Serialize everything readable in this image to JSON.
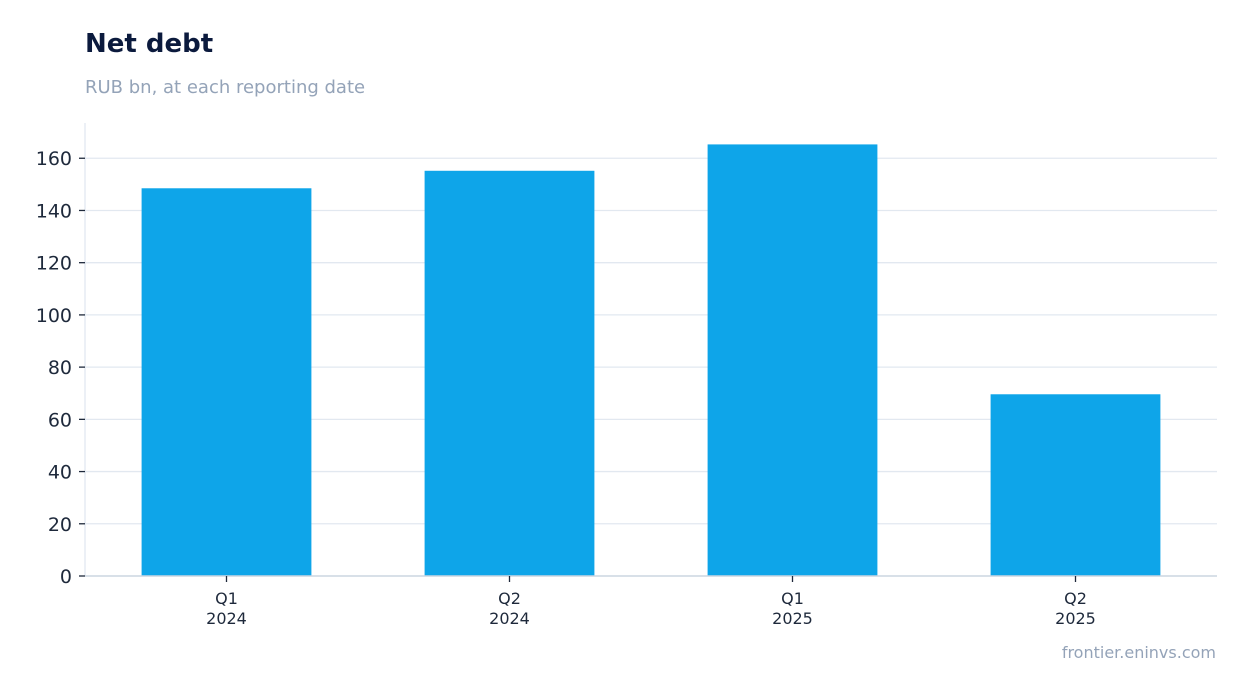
{
  "chart_data": {
    "type": "bar",
    "title": "Net debt",
    "subtitle": "RUB bn, at each reporting date",
    "categories": [
      [
        "Q1",
        "2024"
      ],
      [
        "Q2",
        "2024"
      ],
      [
        "Q1",
        "2025"
      ],
      [
        "Q2",
        "2025"
      ]
    ],
    "values": [
      148.5,
      155.2,
      165.3,
      69.6
    ],
    "ylim": [
      0,
      173.5
    ],
    "yticks": [
      0,
      20,
      40,
      60,
      80,
      100,
      120,
      140,
      160
    ],
    "grid": true,
    "legend": "none",
    "bar_color": "#0ea5e9",
    "grid_color": "#e2e8f0",
    "axis_color": "#cbd5e1",
    "tick_label_color": "#1e293b"
  },
  "source": "frontier.eninvs.com"
}
